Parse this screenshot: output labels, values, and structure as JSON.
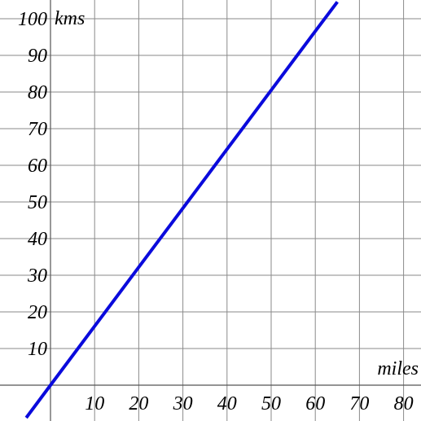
{
  "chart_data": {
    "type": "line",
    "xlabel": "miles",
    "ylabel": "kms",
    "xlim": [
      -6,
      83
    ],
    "ylim": [
      -9,
      104
    ],
    "x_ticks": [
      {
        "value": 10,
        "label": "10"
      },
      {
        "value": 20,
        "label": "20"
      },
      {
        "value": 30,
        "label": "30"
      },
      {
        "value": 40,
        "label": "40"
      },
      {
        "value": 50,
        "label": "50"
      },
      {
        "value": 60,
        "label": "60"
      },
      {
        "value": 70,
        "label": "70"
      },
      {
        "value": 80,
        "label": "80"
      }
    ],
    "y_ticks": [
      {
        "value": 10,
        "label": "10"
      },
      {
        "value": 20,
        "label": "20"
      },
      {
        "value": 30,
        "label": "30"
      },
      {
        "value": 40,
        "label": "40"
      },
      {
        "value": 50,
        "label": "50"
      },
      {
        "value": 60,
        "label": "60"
      },
      {
        "value": 70,
        "label": "70"
      },
      {
        "value": 80,
        "label": "80"
      },
      {
        "value": 90,
        "label": "90"
      },
      {
        "value": 100,
        "label": "100"
      }
    ],
    "grid": true,
    "series": [
      {
        "x": [
          -5.5,
          0,
          10,
          20,
          30,
          40,
          50,
          60,
          65
        ],
        "y": [
          -8.9,
          0,
          16.1,
          32.2,
          48.3,
          64.4,
          80.5,
          96.6,
          104.6
        ],
        "color": "#0a0adc"
      }
    ]
  }
}
